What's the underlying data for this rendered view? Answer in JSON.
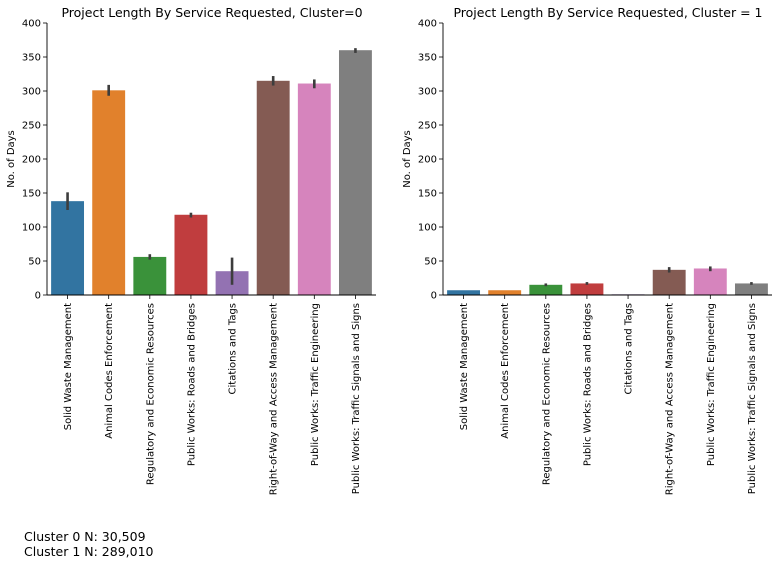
{
  "colors": [
    "#3274a1",
    "#e1812c",
    "#3a923a",
    "#c03d3e",
    "#9372b2",
    "#845b53",
    "#d684bd",
    "#7f7f7f"
  ],
  "chart_data": [
    {
      "type": "bar",
      "title": "Project Length By Service Requested, Cluster=0",
      "xlabel": "",
      "ylabel": "No. of Days",
      "ylim": [
        0,
        400
      ],
      "yticks": [
        0,
        50,
        100,
        150,
        200,
        250,
        300,
        350,
        400
      ],
      "grid": false,
      "categories": [
        "Solid Waste Management",
        "Animal Codes Enforcement",
        "Regulatory and Economic Resources",
        "Public Works: Roads and Bridges",
        "Citations and Tags",
        "Right-of-Way and Access Management",
        "Public Works: Traffic Engineering",
        "Public Works: Traffic Signals and Signs"
      ],
      "values": [
        138,
        301,
        56,
        118,
        35,
        315,
        311,
        360
      ],
      "error_low": [
        125,
        293,
        52,
        114,
        15,
        308,
        304,
        356
      ],
      "error_high": [
        151,
        309,
        60,
        121,
        55,
        322,
        317,
        363
      ]
    },
    {
      "type": "bar",
      "title": "Project Length By Service Requested, Cluster = 1",
      "xlabel": "",
      "ylabel": "No. of Days",
      "ylim": [
        0,
        400
      ],
      "yticks": [
        0,
        50,
        100,
        150,
        200,
        250,
        300,
        350,
        400
      ],
      "grid": false,
      "categories": [
        "Solid Waste Management",
        "Animal Codes Enforcement",
        "Regulatory and Economic Resources",
        "Public Works: Roads and Bridges",
        "Citations and Tags",
        "Right-of-Way and Access Management",
        "Public Works: Traffic Engineering",
        "Public Works: Traffic Signals and Signs"
      ],
      "values": [
        7,
        7,
        15,
        17,
        1,
        37,
        39,
        17
      ],
      "error_low": [
        7,
        7,
        13,
        15,
        1,
        33,
        35,
        15
      ],
      "error_high": [
        7,
        7,
        17,
        19,
        1,
        41,
        42,
        19
      ]
    }
  ],
  "annotations": {
    "cluster0_n": "Cluster 0 N: 30,509",
    "cluster1_n": "Cluster 1 N: 289,010"
  }
}
